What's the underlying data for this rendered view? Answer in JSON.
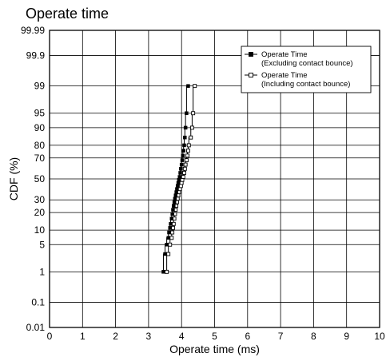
{
  "chart_data": {
    "type": "scatter",
    "title": "Operate time",
    "xlabel": "Operate time (ms)",
    "ylabel": "CDF (%)",
    "xlim": [
      0,
      10
    ],
    "ylim": [
      0.01,
      99.99
    ],
    "y_scale": "probability",
    "grid": true,
    "legend_position": "top-right",
    "x_ticks": [
      0,
      1,
      2,
      3,
      4,
      5,
      6,
      7,
      8,
      9,
      10
    ],
    "x_tick_labels": [
      "0",
      "1",
      "2",
      "3",
      "4",
      "5",
      "6",
      "7",
      "8",
      "9",
      "10"
    ],
    "y_ticks": [
      0.01,
      0.1,
      1,
      5,
      10,
      20,
      30,
      50,
      70,
      80,
      90,
      95,
      99,
      99.9,
      99.99
    ],
    "y_tick_labels": [
      "0.01",
      "0.1",
      "1",
      "5",
      "10",
      "20",
      "30",
      "50",
      "70",
      "80",
      "90",
      "95",
      "99",
      "99.9",
      "99.99"
    ],
    "series": [
      {
        "name": "Operate Time\n(Excluding contact bounce)",
        "marker": "filled-square",
        "color": "#000000",
        "x": [
          3.45,
          3.5,
          3.55,
          3.6,
          3.62,
          3.65,
          3.67,
          3.7,
          3.72,
          3.74,
          3.76,
          3.78,
          3.8,
          3.82,
          3.84,
          3.86,
          3.88,
          3.9,
          3.92,
          3.94,
          3.96,
          3.98,
          4.0,
          4.02,
          4.04,
          4.06,
          4.08,
          4.1,
          4.12,
          4.15,
          4.2
        ],
        "y": [
          1,
          3,
          5,
          7,
          9,
          11,
          13,
          16,
          19,
          22,
          25,
          28,
          31,
          34,
          37,
          40,
          43,
          46,
          49,
          52,
          56,
          60,
          64,
          68,
          72,
          76,
          80,
          85,
          90,
          95,
          99
        ]
      },
      {
        "name": "Operate Time\n(Including contact bounce)",
        "marker": "open-square",
        "color": "#000000",
        "x": [
          3.55,
          3.6,
          3.65,
          3.7,
          3.72,
          3.74,
          3.76,
          3.78,
          3.8,
          3.82,
          3.84,
          3.86,
          3.88,
          3.9,
          3.92,
          3.95,
          3.98,
          4.0,
          4.02,
          4.05,
          4.08,
          4.1,
          4.12,
          4.15,
          4.18,
          4.2,
          4.22,
          4.28,
          4.32,
          4.35,
          4.4
        ],
        "y": [
          1,
          3,
          5,
          7,
          9,
          11,
          13,
          16,
          19,
          22,
          25,
          28,
          31,
          34,
          37,
          40,
          43,
          46,
          49,
          52,
          56,
          60,
          64,
          68,
          72,
          76,
          80,
          85,
          90,
          95,
          99
        ]
      }
    ]
  }
}
